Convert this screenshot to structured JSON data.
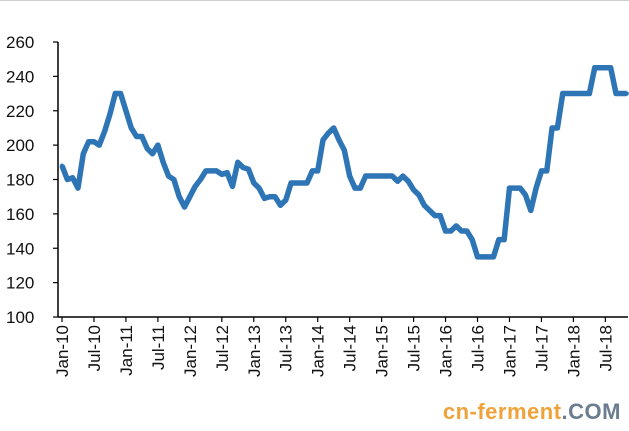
{
  "chart_data": {
    "type": "line",
    "title": "",
    "xlabel": "",
    "ylabel": "",
    "ylim": [
      100,
      260
    ],
    "yticks": [
      100,
      120,
      140,
      160,
      180,
      200,
      220,
      240,
      260
    ],
    "xtick_labels": [
      "Jan-10",
      "Jul-10",
      "Jan-11",
      "Jul-11",
      "Jan-12",
      "Jul-12",
      "Jan-13",
      "Jul-13",
      "Jan-14",
      "Jul-14",
      "Jan-15",
      "Jul-15",
      "Jan-16",
      "Jul-16",
      "Jan-17",
      "Jul-17",
      "Jan-18",
      "Jul-18"
    ],
    "series_color": "#2e75b6",
    "series": [
      {
        "values": [
          [
            "2010-01",
            188
          ],
          [
            "2010-02",
            180
          ],
          [
            "2010-03",
            181
          ],
          [
            "2010-04",
            175
          ],
          [
            "2010-05",
            195
          ],
          [
            "2010-06",
            202
          ],
          [
            "2010-07",
            202
          ],
          [
            "2010-08",
            200
          ],
          [
            "2010-09",
            208
          ],
          [
            "2010-10",
            218
          ],
          [
            "2010-11",
            230
          ],
          [
            "2010-12",
            230
          ],
          [
            "2011-01",
            220
          ],
          [
            "2011-02",
            210
          ],
          [
            "2011-03",
            205
          ],
          [
            "2011-04",
            205
          ],
          [
            "2011-05",
            198
          ],
          [
            "2011-06",
            195
          ],
          [
            "2011-07",
            200
          ],
          [
            "2011-08",
            190
          ],
          [
            "2011-09",
            182
          ],
          [
            "2011-10",
            180
          ],
          [
            "2011-11",
            170
          ],
          [
            "2011-12",
            164
          ],
          [
            "2012-01",
            170
          ],
          [
            "2012-02",
            176
          ],
          [
            "2012-03",
            180
          ],
          [
            "2012-04",
            185
          ],
          [
            "2012-05",
            185
          ],
          [
            "2012-06",
            185
          ],
          [
            "2012-07",
            183
          ],
          [
            "2012-08",
            184
          ],
          [
            "2012-09",
            176
          ],
          [
            "2012-10",
            190
          ],
          [
            "2012-11",
            187
          ],
          [
            "2012-12",
            186
          ],
          [
            "2013-01",
            178
          ],
          [
            "2013-02",
            175
          ],
          [
            "2013-03",
            169
          ],
          [
            "2013-04",
            170
          ],
          [
            "2013-05",
            170
          ],
          [
            "2013-06",
            165
          ],
          [
            "2013-07",
            168
          ],
          [
            "2013-08",
            178
          ],
          [
            "2013-09",
            178
          ],
          [
            "2013-10",
            178
          ],
          [
            "2013-11",
            178
          ],
          [
            "2013-12",
            185
          ],
          [
            "2014-01",
            185
          ],
          [
            "2014-02",
            203
          ],
          [
            "2014-03",
            207
          ],
          [
            "2014-04",
            210
          ],
          [
            "2014-05",
            203
          ],
          [
            "2014-06",
            197
          ],
          [
            "2014-07",
            182
          ],
          [
            "2014-08",
            175
          ],
          [
            "2014-09",
            175
          ],
          [
            "2014-10",
            182
          ],
          [
            "2014-11",
            182
          ],
          [
            "2014-12",
            182
          ],
          [
            "2015-01",
            182
          ],
          [
            "2015-02",
            182
          ],
          [
            "2015-03",
            182
          ],
          [
            "2015-04",
            179
          ],
          [
            "2015-05",
            182
          ],
          [
            "2015-06",
            179
          ],
          [
            "2015-07",
            174
          ],
          [
            "2015-08",
            171
          ],
          [
            "2015-09",
            165
          ],
          [
            "2015-10",
            162
          ],
          [
            "2015-11",
            159
          ],
          [
            "2015-12",
            159
          ],
          [
            "2016-01",
            150
          ],
          [
            "2016-02",
            150
          ],
          [
            "2016-03",
            153
          ],
          [
            "2016-04",
            150
          ],
          [
            "2016-05",
            150
          ],
          [
            "2016-06",
            145
          ],
          [
            "2016-07",
            135
          ],
          [
            "2016-08",
            135
          ],
          [
            "2016-09",
            135
          ],
          [
            "2016-10",
            135
          ],
          [
            "2016-11",
            145
          ],
          [
            "2016-12",
            145
          ],
          [
            "2017-01",
            175
          ],
          [
            "2017-02",
            175
          ],
          [
            "2017-03",
            175
          ],
          [
            "2017-04",
            171
          ],
          [
            "2017-05",
            162
          ],
          [
            "2017-06",
            175
          ],
          [
            "2017-07",
            185
          ],
          [
            "2017-08",
            185
          ],
          [
            "2017-09",
            210
          ],
          [
            "2017-10",
            210
          ],
          [
            "2017-11",
            230
          ],
          [
            "2017-12",
            230
          ],
          [
            "2018-01",
            230
          ],
          [
            "2018-02",
            230
          ],
          [
            "2018-03",
            230
          ],
          [
            "2018-04",
            230
          ],
          [
            "2018-05",
            245
          ],
          [
            "2018-06",
            245
          ],
          [
            "2018-07",
            245
          ],
          [
            "2018-08",
            245
          ],
          [
            "2018-09",
            230
          ],
          [
            "2018-10",
            230
          ],
          [
            "2018-11",
            230
          ]
        ]
      }
    ]
  },
  "watermark": {
    "part1": "cn-ferment",
    "part2": ".COM"
  }
}
